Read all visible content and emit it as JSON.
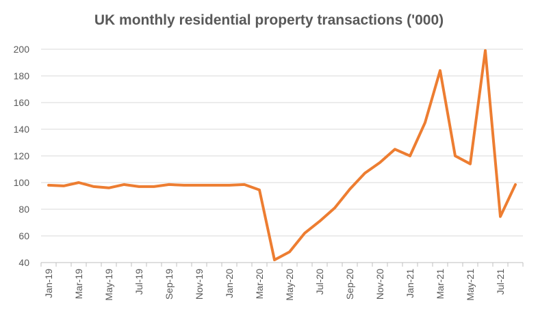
{
  "chart_data": {
    "type": "line",
    "title": "UK monthly residential property transactions ('000)",
    "xlabel": "",
    "ylabel": "",
    "ylim": [
      40,
      200
    ],
    "yticks": [
      40,
      60,
      80,
      100,
      120,
      140,
      160,
      180,
      200
    ],
    "grid": true,
    "legend": "none",
    "x": [
      "Jan-19",
      "Feb-19",
      "Mar-19",
      "Apr-19",
      "May-19",
      "Jun-19",
      "Jul-19",
      "Aug-19",
      "Sep-19",
      "Oct-19",
      "Nov-19",
      "Dec-19",
      "Jan-20",
      "Feb-20",
      "Mar-20",
      "Apr-20",
      "May-20",
      "Jun-20",
      "Jul-20",
      "Aug-20",
      "Sep-20",
      "Oct-20",
      "Nov-20",
      "Dec-20",
      "Jan-21",
      "Feb-21",
      "Mar-21",
      "Apr-21",
      "May-21",
      "Jun-21",
      "Jul-21",
      "Aug-21"
    ],
    "x_tick_labels": [
      "Jan-19",
      "Mar-19",
      "May-19",
      "Jul-19",
      "Sep-19",
      "Nov-19",
      "Jan-20",
      "Mar-20",
      "May-20",
      "Jul-20",
      "Sep-20",
      "Nov-20",
      "Jan-21",
      "Mar-21",
      "May-21",
      "Jul-21"
    ],
    "series": [
      {
        "values": [
          98,
          97.5,
          100,
          97,
          96,
          98.5,
          97,
          97,
          98.5,
          98,
          98,
          98,
          98,
          98.5,
          94.5,
          42,
          48,
          62,
          71,
          81,
          95,
          107,
          115,
          125,
          120,
          145,
          184,
          120,
          114,
          199,
          74.5,
          98.5
        ]
      }
    ],
    "colors": {
      "line": "#ED7D31",
      "grid": "#D9D9D9",
      "axis": "#BFBFBF",
      "text": "#595959"
    }
  }
}
